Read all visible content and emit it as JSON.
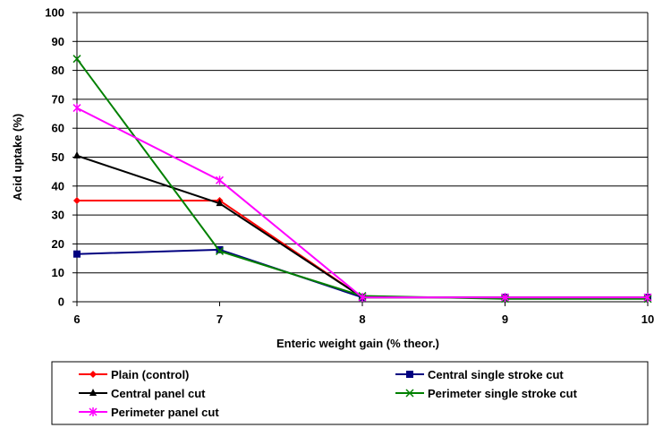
{
  "chart_data": {
    "type": "line",
    "xlabel": "Enteric weight gain (% theor.)",
    "ylabel": "Acid uptake (%)",
    "x": [
      6,
      7,
      8,
      9,
      10
    ],
    "xlim": [
      6,
      10
    ],
    "ylim": [
      0,
      100
    ],
    "xticks": [
      "6",
      "7",
      "8",
      "9",
      "10"
    ],
    "yticks": [
      "0",
      "10",
      "20",
      "30",
      "40",
      "50",
      "60",
      "70",
      "80",
      "90",
      "100"
    ],
    "grid": "horizontal",
    "legend_position": "bottom",
    "series": [
      {
        "name": "Plain (control)",
        "color": "#ff0000",
        "marker": "diamond",
        "values": [
          35,
          35,
          1.5,
          1.5,
          1.5
        ]
      },
      {
        "name": "Central single stroke cut",
        "color": "#000080",
        "marker": "square",
        "values": [
          16.5,
          18,
          1.5,
          1.5,
          1.5
        ]
      },
      {
        "name": "Central panel cut",
        "color": "#000000",
        "marker": "triangle",
        "values": [
          50.5,
          34,
          1.5,
          1.5,
          1.5
        ]
      },
      {
        "name": "Perimeter single stroke cut",
        "color": "#008000",
        "marker": "x",
        "values": [
          84,
          17.5,
          2,
          1,
          1
        ]
      },
      {
        "name": "Perimeter panel cut",
        "color": "#ff00ff",
        "marker": "star",
        "values": [
          67,
          42,
          1.5,
          1.5,
          1.5
        ]
      }
    ]
  }
}
